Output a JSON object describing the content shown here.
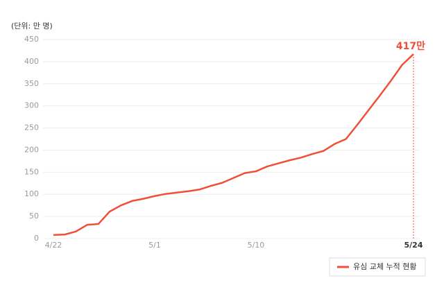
{
  "chart_data": {
    "type": "line",
    "y_label": "(단위: 만 명)",
    "categories": [
      "4/22",
      null,
      null,
      null,
      null,
      null,
      null,
      null,
      null,
      "5/1",
      null,
      null,
      null,
      null,
      null,
      null,
      null,
      null,
      "5/10",
      null,
      null,
      null,
      null,
      null,
      null,
      null,
      null,
      null,
      null,
      null,
      null,
      null,
      "5/24"
    ],
    "series": [
      {
        "name": "유심 교체 누적 현황",
        "color": "#f04e37",
        "values": [
          8,
          9,
          16,
          31,
          33,
          61,
          75,
          85,
          90,
          96,
          101,
          104,
          107,
          111,
          119,
          126,
          137,
          148,
          152,
          163,
          170,
          177,
          183,
          191,
          198,
          214,
          225,
          257,
          290,
          323,
          357,
          393,
          417
        ],
        "value_labels": [
          null,
          null,
          null,
          null,
          null,
          null,
          null,
          null,
          null,
          null,
          null,
          null,
          null,
          null,
          null,
          null,
          null,
          null,
          null,
          null,
          null,
          null,
          null,
          null,
          null,
          null,
          null,
          null,
          null,
          null,
          null,
          null,
          "417만"
        ]
      }
    ],
    "ylim": [
      0,
      450
    ],
    "yticks": [
      0,
      50,
      100,
      150,
      200,
      250,
      300,
      350,
      400,
      450
    ],
    "grid": true
  }
}
